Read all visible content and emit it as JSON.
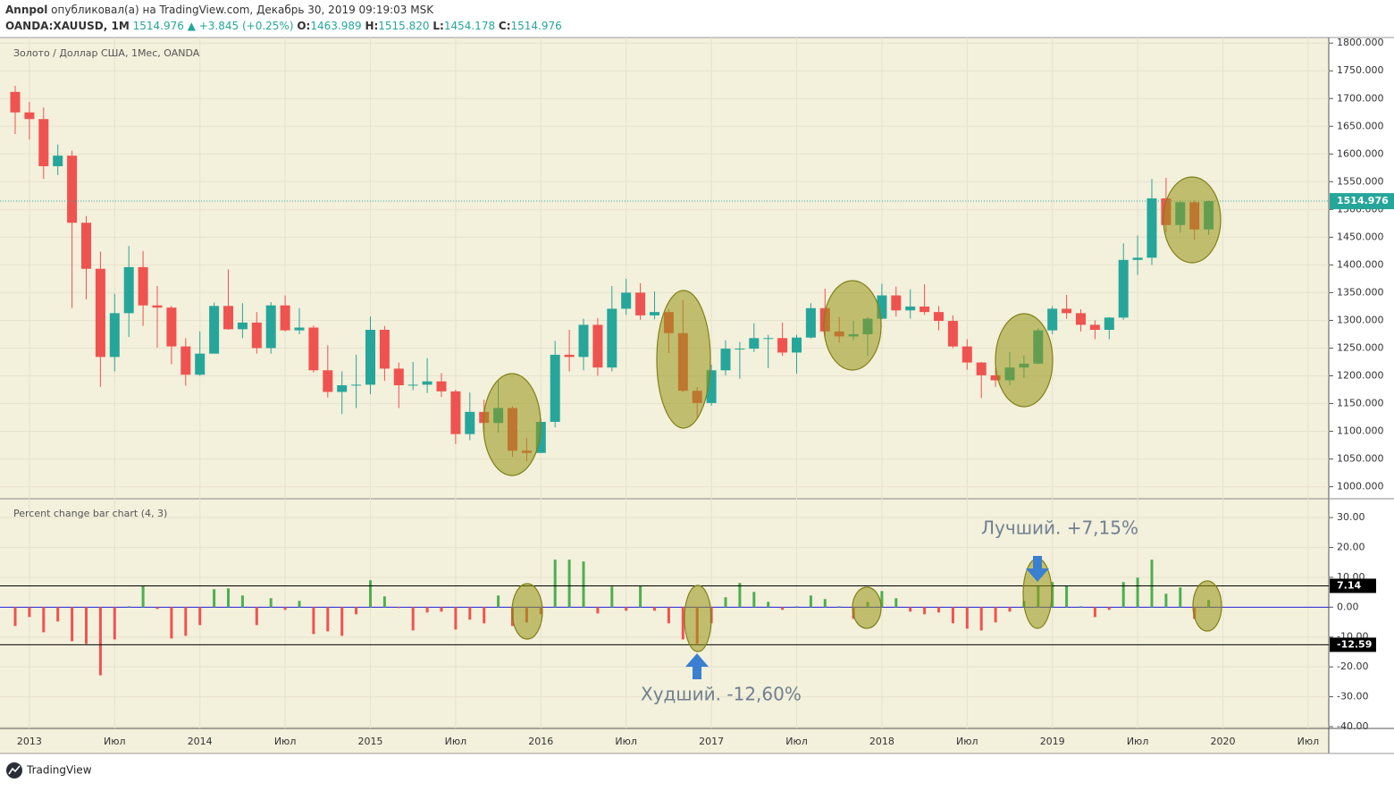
{
  "header": {
    "publisher": "Annpol",
    "published": "опубликовал(а) на TradingView.com, Декабрь 30, 2019 09:19:03 MSK",
    "symbol": "OANDA:XAUUSD, 1M",
    "last": "1514.976",
    "change": "▲ +3.845 (+0.25%)",
    "ohlc": [
      {
        "label": "O:",
        "value": "1463.989"
      },
      {
        "label": "H:",
        "value": "1515.820"
      },
      {
        "label": "L:",
        "value": "1454.178"
      },
      {
        "label": "C:",
        "value": "1514.976"
      }
    ]
  },
  "footer": {
    "brand": "TradingView"
  },
  "chart_data": [
    {
      "type": "candlestick",
      "title": "Золото / Доллар США, 1Мес, OANDA",
      "up_color": "#26a69a",
      "down_color": "#ef5350",
      "open": [
        1712,
        1675,
        1663,
        1578,
        1597,
        1476,
        1393,
        1234,
        1313,
        1396,
        1327,
        1323,
        1253,
        1202,
        1240,
        1326,
        1284,
        1296,
        1250,
        1327,
        1282,
        1287,
        1210,
        1171,
        1183,
        1184,
        1283,
        1213,
        1183,
        1184,
        1190,
        1172,
        1095,
        1135,
        1115,
        1142,
        1065,
        1061,
        1117,
        1238,
        1234,
        1292,
        1215,
        1321,
        1350,
        1309,
        1315,
        1277,
        1173,
        1151,
        1210,
        1249,
        1249,
        1268,
        1268,
        1242,
        1269,
        1322,
        1280,
        1271,
        1275,
        1303,
        1345,
        1318,
        1325,
        1315,
        1299,
        1253,
        1224,
        1201,
        1192,
        1215,
        1222,
        1282,
        1321,
        1313,
        1292,
        1283,
        1305,
        1409,
        1413,
        1520,
        1472,
        1513,
        1464
      ],
      "high": [
        1723,
        1694,
        1684,
        1617,
        1606,
        1488,
        1424,
        1348,
        1434,
        1425,
        1362,
        1326,
        1268,
        1280,
        1332,
        1392,
        1331,
        1315,
        1333,
        1345,
        1322,
        1291,
        1255,
        1208,
        1238,
        1307,
        1290,
        1224,
        1225,
        1232,
        1205,
        1175,
        1170,
        1157,
        1191,
        1145,
        1088,
        1123,
        1263,
        1283,
        1303,
        1304,
        1362,
        1375,
        1367,
        1352,
        1320,
        1337,
        1180,
        1220,
        1264,
        1261,
        1295,
        1274,
        1296,
        1274,
        1331,
        1357,
        1306,
        1299,
        1306,
        1366,
        1361,
        1356,
        1365,
        1326,
        1309,
        1266,
        1225,
        1214,
        1243,
        1237,
        1286,
        1326,
        1346,
        1320,
        1300,
        1306,
        1439,
        1453,
        1555,
        1557,
        1516,
        1516,
        1516
      ],
      "low": [
        1636,
        1626,
        1555,
        1562,
        1322,
        1338,
        1180,
        1208,
        1270,
        1290,
        1251,
        1221,
        1182,
        1200,
        1240,
        1283,
        1268,
        1240,
        1240,
        1280,
        1275,
        1206,
        1161,
        1131,
        1142,
        1167,
        1191,
        1142,
        1174,
        1169,
        1162,
        1077,
        1084,
        1098,
        1098,
        1054,
        1046,
        1061,
        1107,
        1208,
        1210,
        1200,
        1208,
        1310,
        1301,
        1302,
        1241,
        1171,
        1122,
        1146,
        1201,
        1195,
        1243,
        1214,
        1236,
        1204,
        1267,
        1271,
        1260,
        1264,
        1236,
        1302,
        1307,
        1303,
        1310,
        1282,
        1250,
        1211,
        1160,
        1180,
        1183,
        1196,
        1221,
        1275,
        1303,
        1280,
        1266,
        1266,
        1301,
        1382,
        1400,
        1459,
        1458,
        1445,
        1454
      ],
      "close": [
        1675,
        1663,
        1578,
        1597,
        1476,
        1393,
        1234,
        1313,
        1396,
        1327,
        1323,
        1253,
        1202,
        1240,
        1326,
        1284,
        1296,
        1250,
        1327,
        1282,
        1287,
        1210,
        1171,
        1183,
        1184,
        1283,
        1213,
        1183,
        1184,
        1190,
        1172,
        1095,
        1135,
        1115,
        1142,
        1065,
        1061,
        1117,
        1238,
        1234,
        1292,
        1215,
        1321,
        1350,
        1309,
        1315,
        1277,
        1173,
        1151,
        1210,
        1249,
        1249,
        1268,
        1268,
        1242,
        1269,
        1322,
        1280,
        1271,
        1275,
        1303,
        1345,
        1318,
        1325,
        1315,
        1299,
        1253,
        1224,
        1201,
        1192,
        1215,
        1222,
        1282,
        1321,
        1313,
        1292,
        1283,
        1305,
        1409,
        1413,
        1520,
        1472,
        1513,
        1464,
        1514.976
      ],
      "last_price": 1514.976,
      "ylim": [
        980,
        1810
      ],
      "yticks": [
        {
          "value": 1000,
          "label": "1000.000"
        },
        {
          "value": 1050,
          "label": "1050.000"
        },
        {
          "value": 1100,
          "label": "1100.000"
        },
        {
          "value": 1150,
          "label": "1150.000"
        },
        {
          "value": 1200,
          "label": "1200.000"
        },
        {
          "value": 1250,
          "label": "1250.000"
        },
        {
          "value": 1300,
          "label": "1300.000"
        },
        {
          "value": 1350,
          "label": "1350.000"
        },
        {
          "value": 1400,
          "label": "1400.000"
        },
        {
          "value": 1450,
          "label": "1450.000"
        },
        {
          "value": 1500,
          "label": "1500.000"
        },
        {
          "value": 1550,
          "label": "1550.000"
        },
        {
          "value": 1600,
          "label": "1600.000"
        },
        {
          "value": 1650,
          "label": "1650.000"
        },
        {
          "value": 1700,
          "label": "1700.000"
        },
        {
          "value": 1750,
          "label": "1750.000"
        },
        {
          "value": 1800,
          "label": "1800.000"
        }
      ],
      "xticks": [
        {
          "value": 1,
          "label": "2013"
        },
        {
          "value": 7,
          "label": "Июл"
        },
        {
          "value": 13,
          "label": "2014"
        },
        {
          "value": 19,
          "label": "Июл"
        },
        {
          "value": 25,
          "label": "2015"
        },
        {
          "value": 31,
          "label": "Июл"
        },
        {
          "value": 37,
          "label": "2016"
        },
        {
          "value": 43,
          "label": "Июл"
        },
        {
          "value": 49,
          "label": "2017"
        },
        {
          "value": 55,
          "label": "Июл"
        },
        {
          "value": 61,
          "label": "2018"
        },
        {
          "value": 67,
          "label": "Июл"
        },
        {
          "value": 73,
          "label": "2019"
        },
        {
          "value": 79,
          "label": "Июл"
        },
        {
          "value": 85,
          "label": "2020"
        },
        {
          "value": 91,
          "label": "Июл"
        }
      ]
    },
    {
      "type": "bar",
      "title": "Percent change bar chart (4, 3)",
      "up_color": "#4caf50",
      "down_color": "#ef5350",
      "values": [
        -6.3,
        -3.3,
        -8.4,
        -4.8,
        -11.4,
        -12.3,
        -22.8,
        -10.8,
        0.3,
        7.2,
        -0.6,
        -10.5,
        -9.6,
        -6,
        6,
        6.3,
        3.9,
        -6,
        3,
        -0.9,
        2.1,
        -9,
        -8.1,
        -9.6,
        -2.4,
        9,
        3.6,
        -0.3,
        -7.8,
        -1.8,
        -1.5,
        -7.5,
        -4.2,
        -5.4,
        3.9,
        -6.3,
        -5.1,
        -2.4,
        15.9,
        15.9,
        15.3,
        -2.1,
        6.9,
        -1.2,
        7.2,
        -1.2,
        -5.4,
        -10.8,
        -12.3,
        -5.4,
        3.3,
        8.1,
        5.1,
        1.8,
        -0.9,
        0.3,
        3.9,
        2.7,
        0.3,
        -3.9,
        1.8,
        5.4,
        3,
        -1.5,
        -2.4,
        -1.8,
        -5.4,
        -7.2,
        -7.8,
        -5.1,
        -1.5,
        2.1,
        7.2,
        8.4,
        7.2,
        0.3,
        -3.3,
        -0.9,
        8.4,
        9.9,
        15.9,
        4.5,
        6.6,
        -3.9,
        2.4
      ],
      "levels": [
        {
          "value": 7.14,
          "label": "7.14"
        },
        {
          "value": -12.59,
          "label": "-12.59"
        }
      ],
      "ylim": [
        -40.6,
        36.3
      ],
      "yticks": [
        {
          "value": 30,
          "label": "30.00"
        },
        {
          "value": 20,
          "label": "20.00"
        },
        {
          "value": 10,
          "label": "10.00"
        },
        {
          "value": 0,
          "label": "0.00"
        },
        {
          "value": -10,
          "label": "-10.00"
        },
        {
          "value": -20,
          "label": "-20.00"
        },
        {
          "value": -30,
          "label": "-30.00"
        },
        {
          "value": -40,
          "label": "-40.00"
        }
      ],
      "annotations": [
        {
          "text": "Лучший. +7,15%"
        },
        {
          "text": "Худший. -12,60%"
        }
      ]
    }
  ]
}
